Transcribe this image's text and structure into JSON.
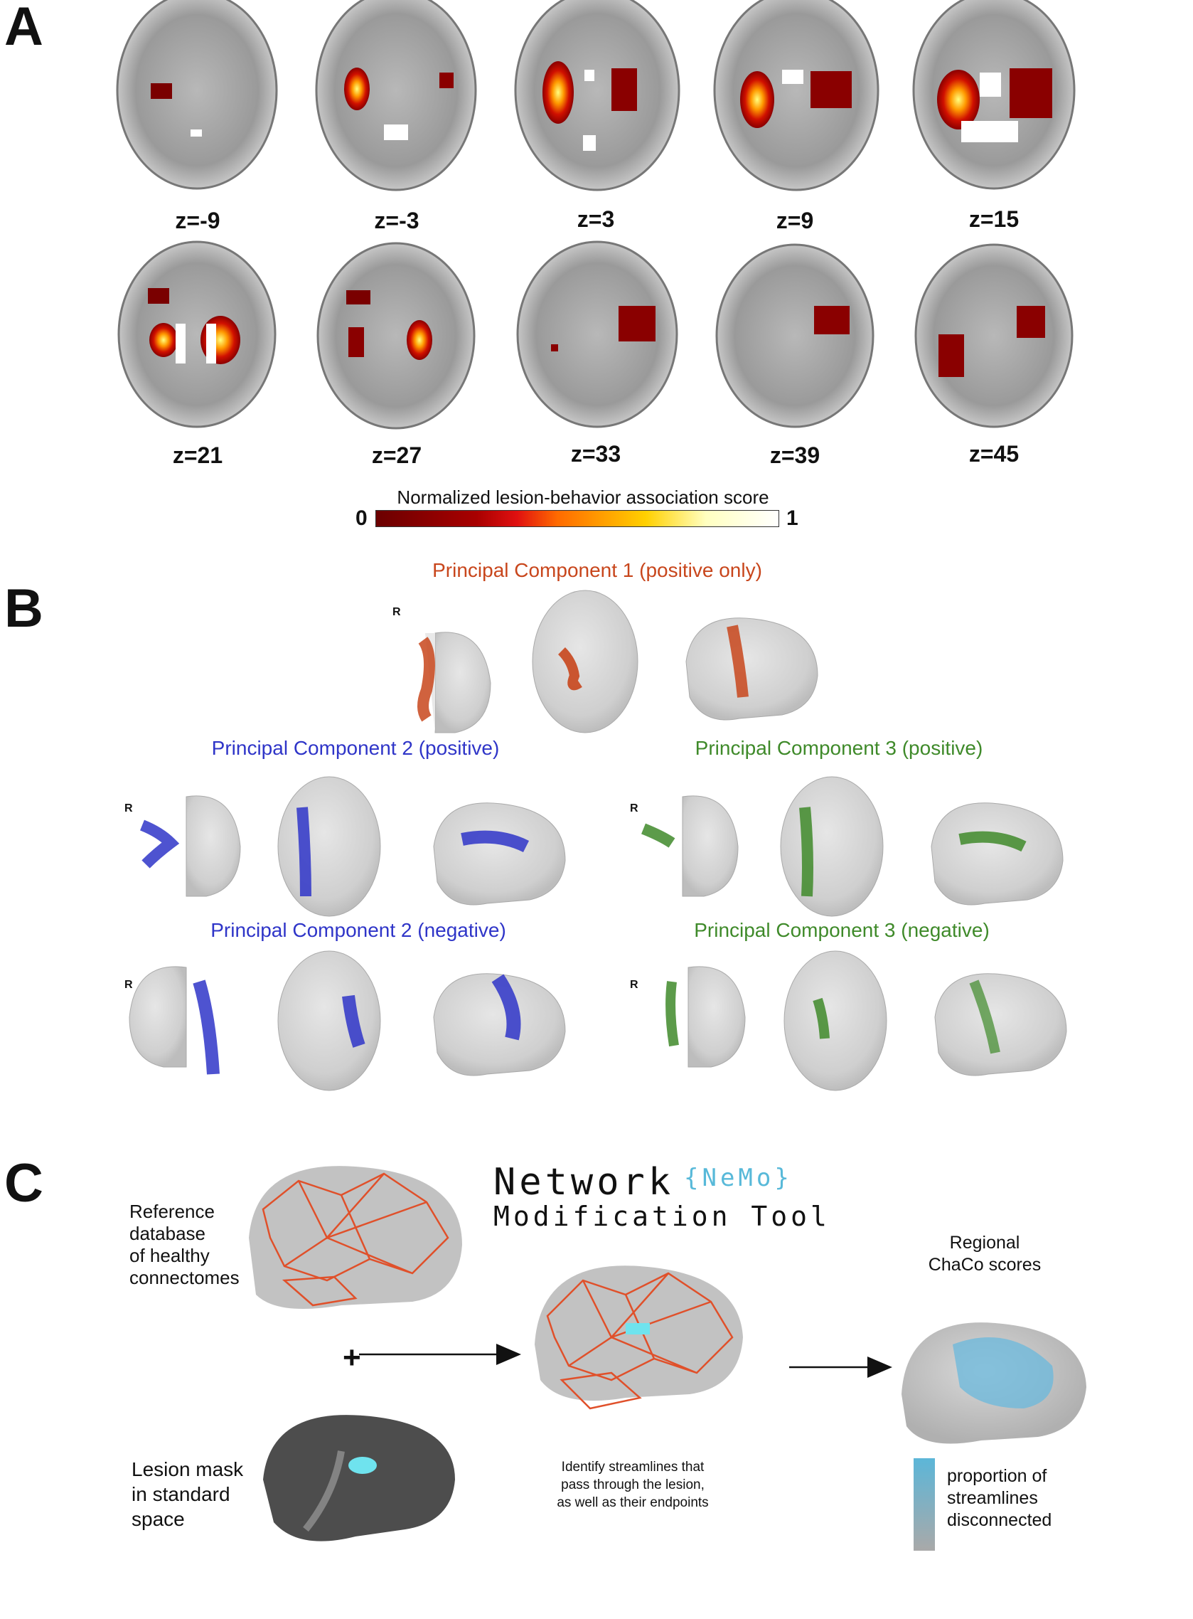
{
  "panels": {
    "a": {
      "letter": "A",
      "slices_row1": [
        "z=-9",
        "z=-3",
        "z=3",
        "z=9",
        "z=15"
      ],
      "slices_row2": [
        "z=21",
        "z=27",
        "z=33",
        "z=39",
        "z=45"
      ],
      "colorbar": {
        "title": "Normalized lesion-behavior association score",
        "min_label": "0",
        "max_label": "1",
        "colors": [
          "#6b0000",
          "#a80000",
          "#e01010",
          "#ff6a00",
          "#ffd000",
          "#ffffc0",
          "#ffffff"
        ]
      }
    },
    "b": {
      "letter": "B",
      "pc1_title": "Principal Component 1 (positive only)",
      "pc2_pos_title": "Principal Component 2 (positive)",
      "pc3_pos_title": "Principal Component 3 (positive)",
      "pc2_neg_title": "Principal Component 2 (negative)",
      "pc3_neg_title": "Principal Component 3 (negative)",
      "r_label": "R",
      "colors": {
        "pc1": "#c8461c",
        "pc2": "#2f35c8",
        "pc3": "#3f8a2a"
      }
    },
    "c": {
      "letter": "C",
      "tool_name_line1": "Network",
      "tool_abbrev": "{NeMo}",
      "tool_name_line2": "Modification Tool",
      "reference_label": "Reference\ndatabase\nof healthy\nconnectomes",
      "lesion_label": "Lesion mask\nin standard\nspace",
      "plus_symbol": "+",
      "identify_text": "Identify streamlines that\npass through the lesion,\nas well as their endpoints",
      "regional_label": "Regional\nChaCo scores",
      "legend_label": "proportion of\nstreamlines\ndisconnected",
      "colors": {
        "network": "#e0502a",
        "lesion": "#6fe3ee",
        "chaco": "#6ab8dc",
        "abbrev": "#58b9d9"
      }
    }
  }
}
